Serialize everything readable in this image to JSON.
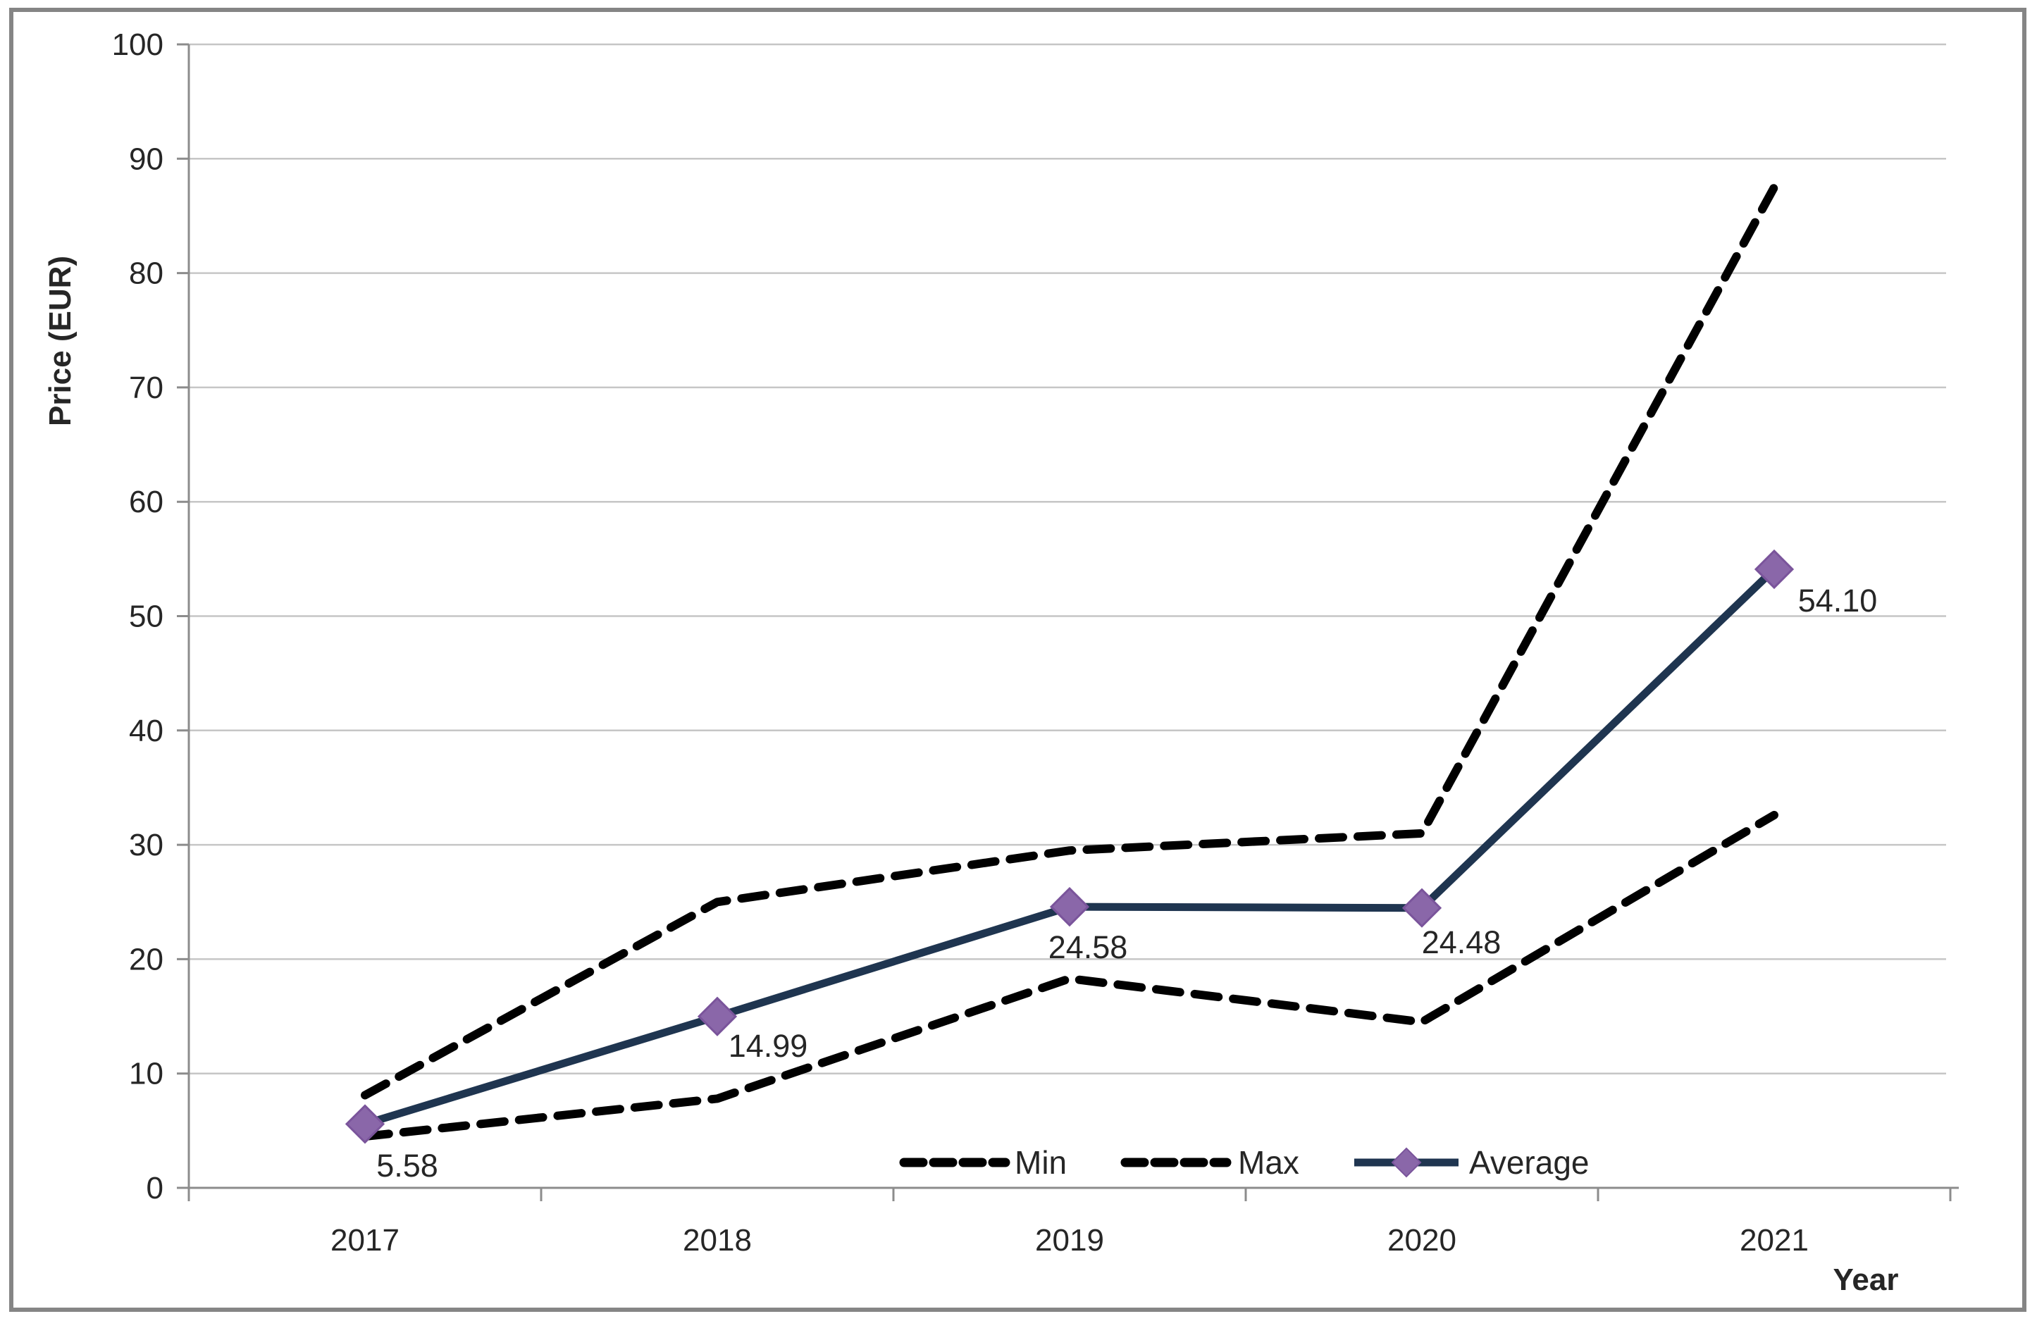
{
  "figure": {
    "background": "#ffffff",
    "border_color": "#858585",
    "grid_color": "#c6c6c6",
    "axis_color": "#8c8c8c",
    "text_color": "#262626"
  },
  "chart_data": {
    "type": "line",
    "title": "",
    "xlabel": "Year",
    "ylabel": "Price (EUR)",
    "categories": [
      "2017",
      "2018",
      "2019",
      "2020",
      "2021"
    ],
    "ylim": [
      0,
      100
    ],
    "yticks": [
      0,
      10,
      20,
      30,
      40,
      50,
      60,
      70,
      80,
      90,
      100
    ],
    "grid": "horizontal",
    "legend_position": "bottom-inside",
    "series": [
      {
        "name": "Min",
        "style": "dashed",
        "color": "#000000",
        "values": [
          4.5,
          7.8,
          18.3,
          14.5,
          32.6
        ]
      },
      {
        "name": "Max",
        "style": "dashed",
        "color": "#000000",
        "values": [
          8.1,
          25.0,
          29.5,
          31.0,
          87.5
        ]
      },
      {
        "name": "Average",
        "style": "solid",
        "color": "#1f3550",
        "marker": "diamond",
        "marker_fill": "#8a67a9",
        "marker_edge": "#7a549b",
        "values": [
          5.58,
          14.99,
          24.58,
          24.48,
          54.1
        ],
        "data_labels": [
          "5.58",
          "14.99",
          "24.58",
          "24.48",
          "54.10"
        ]
      }
    ]
  }
}
